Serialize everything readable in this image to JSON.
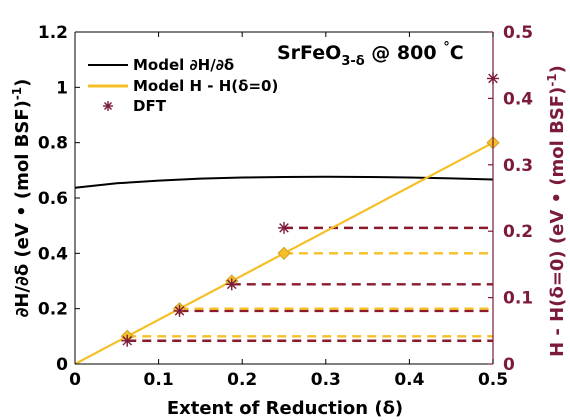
{
  "chart_data": {
    "type": "line",
    "annotation": "SrFeO3-δ @ 800 °C",
    "annotation_parts": {
      "base": "SrFeO",
      "sub": "3-δ",
      "rest": " @ 800 ",
      "deg": "°",
      "unit": "C"
    },
    "xlabel": "Extent of Reduction (δ)",
    "ylabel_left": "∂H/∂δ (eV • (mol BSF)",
    "ylabel_left_sup": "-1",
    "ylabel_left_end": ")",
    "ylabel_right": "H - H(δ=0) (eV • (mol BSF)",
    "ylabel_right_sup": "-1",
    "ylabel_right_end": ")",
    "xlim": [
      0,
      0.5
    ],
    "ylim_left": [
      0,
      1.2
    ],
    "ylim_right": [
      0,
      0.5
    ],
    "x_ticks": [
      0,
      0.1,
      0.2,
      0.3,
      0.4,
      0.5
    ],
    "x_tick_labels": [
      "0",
      "0.1",
      "0.2",
      "0.3",
      "0.4",
      "0.5"
    ],
    "y_left_ticks": [
      0,
      0.2,
      0.4,
      0.6,
      0.8,
      1.0,
      1.2
    ],
    "y_left_tick_labels": [
      "0",
      "0.2",
      "0.4",
      "0.6",
      "0.8",
      "1",
      "1.2"
    ],
    "y_right_ticks": [
      0,
      0.1,
      0.2,
      0.3,
      0.4,
      0.5
    ],
    "y_right_tick_labels": [
      "0",
      "0.1",
      "0.2",
      "0.3",
      "0.4",
      "0.5"
    ],
    "grid": false,
    "legend_placement": "top-left",
    "colors": {
      "dHdd": "#000000",
      "H": "#F5C026",
      "DFT": "#7B1A3E",
      "dash_dark": "#8B1A2B",
      "marker": "#F5C026"
    },
    "series": [
      {
        "name": "Model ∂H/∂δ",
        "legend_label": "Model ∂H/∂δ",
        "axis": "left",
        "style": "line",
        "x": [
          0,
          0.05,
          0.1,
          0.15,
          0.2,
          0.25,
          0.3,
          0.35,
          0.4,
          0.45,
          0.5
        ],
        "y": [
          0.637,
          0.653,
          0.663,
          0.67,
          0.674,
          0.676,
          0.677,
          0.676,
          0.674,
          0.671,
          0.667
        ]
      },
      {
        "name": "Model H - H(δ=0)",
        "legend_label": "Model H - H(δ=0)",
        "axis": "right",
        "style": "line",
        "x": [
          0,
          0.5
        ],
        "y": [
          0,
          0.3333
        ]
      },
      {
        "name": "DFT",
        "legend_label": "DFT",
        "axis": "right",
        "style": "asterisk",
        "x": [
          0.0625,
          0.125,
          0.1875,
          0.25,
          0.5
        ],
        "y": [
          0.035,
          0.08,
          0.12,
          0.205,
          0.43
        ]
      }
    ],
    "model_markers": {
      "axis": "right",
      "x": [
        0.0625,
        0.125,
        0.1875,
        0.25,
        0.5
      ],
      "y": [
        0.0417,
        0.0833,
        0.125,
        0.1667,
        0.3333
      ]
    },
    "dashed_levels": [
      {
        "y": 0.035,
        "x0": 0.0625,
        "x1": 0.5,
        "color": "dash_dark"
      },
      {
        "y": 0.0417,
        "x0": 0.0625,
        "x1": 0.5,
        "color": "marker"
      },
      {
        "y": 0.08,
        "x0": 0.125,
        "x1": 0.5,
        "color": "dash_dark"
      },
      {
        "y": 0.0833,
        "x0": 0.125,
        "x1": 0.5,
        "color": "marker"
      },
      {
        "y": 0.12,
        "x0": 0.1875,
        "x1": 0.5,
        "color": "dash_dark"
      },
      {
        "y": 0.1667,
        "x0": 0.25,
        "x1": 0.5,
        "color": "marker"
      },
      {
        "y": 0.205,
        "x0": 0.25,
        "x1": 0.5,
        "color": "dash_dark"
      }
    ]
  }
}
